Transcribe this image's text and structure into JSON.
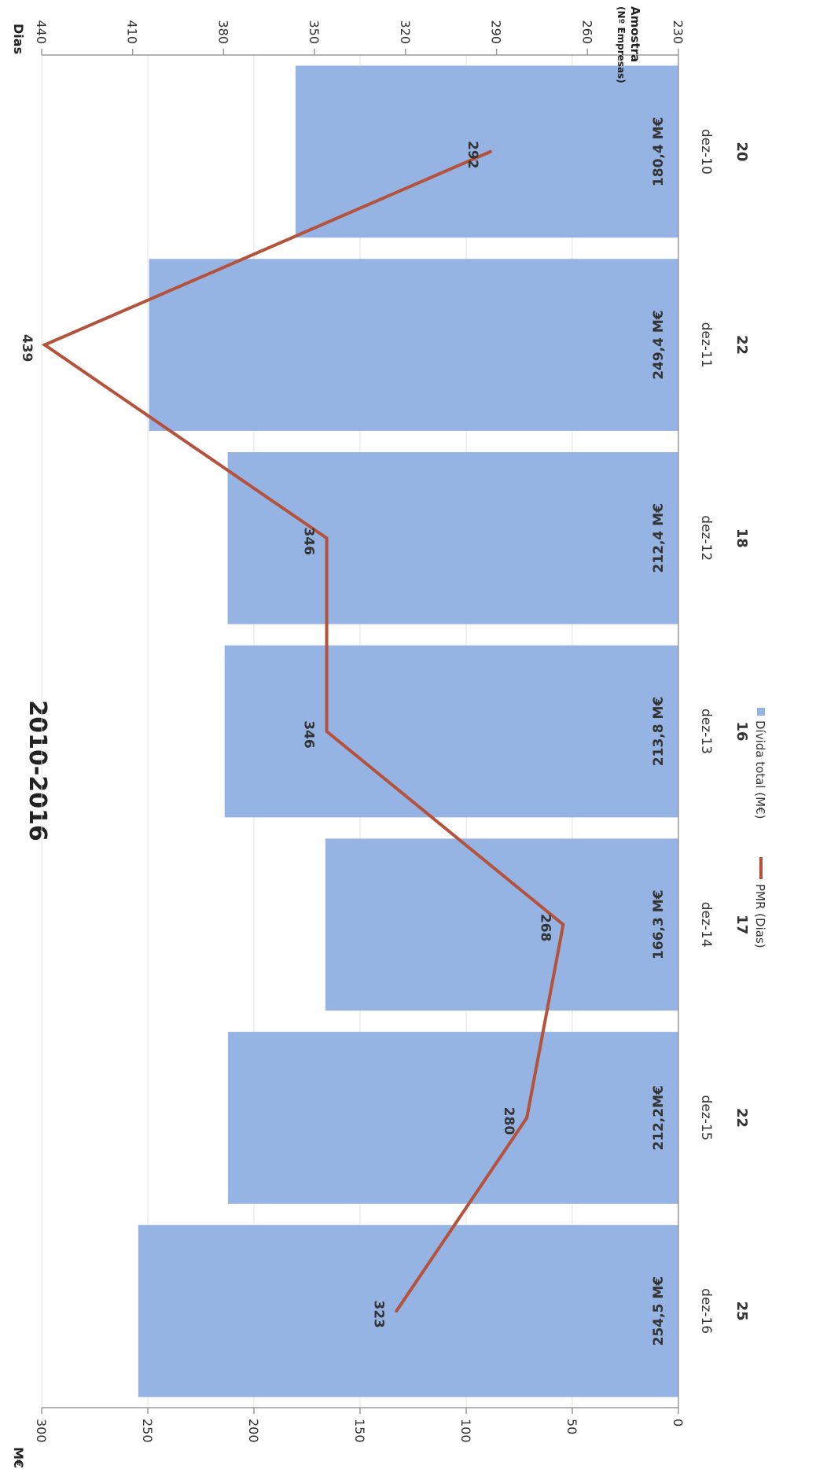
{
  "chart_data": {
    "type": "bar",
    "title": "2010-2016",
    "categories": [
      "dez-10",
      "dez-11",
      "dez-12",
      "dez-13",
      "dez-14",
      "dez-15",
      "dez-16"
    ],
    "sample_header": "Amostra",
    "sample_subheader": "(Nº Empresas)",
    "sample": [
      "20",
      "22",
      "18",
      "16",
      "17",
      "22",
      "25"
    ],
    "series": [
      {
        "name": "Dívida total (M€)",
        "kind": "bar",
        "axis": "right",
        "color": "#95b3e3",
        "values": [
          180.4,
          249.4,
          212.4,
          213.8,
          166.3,
          212.2,
          254.5
        ],
        "labels": [
          "180,4 M€",
          "249,4 M€",
          "212,4 M€",
          "213,8 M€",
          "166,3 M€",
          "212,2M€",
          "254,5 M€"
        ]
      },
      {
        "name": "PMR (Dias)",
        "kind": "line",
        "axis": "left",
        "color": "#b5523b",
        "values": [
          292,
          439,
          346,
          346,
          268,
          280,
          323
        ],
        "labels": [
          "292",
          "439",
          "346",
          "346",
          "268",
          "280",
          "323"
        ]
      }
    ],
    "y_left": {
      "label": "Dias",
      "ticks": [
        "230",
        "260",
        "290",
        "320",
        "350",
        "380",
        "410",
        "440"
      ],
      "range": [
        230,
        440
      ]
    },
    "y_right": {
      "label": "M€",
      "ticks": [
        "0",
        "50",
        "100",
        "150",
        "200",
        "250",
        "300"
      ],
      "range": [
        0,
        300
      ]
    },
    "orientation": "rotated 90° clockwise",
    "legend_position": "bottom"
  }
}
